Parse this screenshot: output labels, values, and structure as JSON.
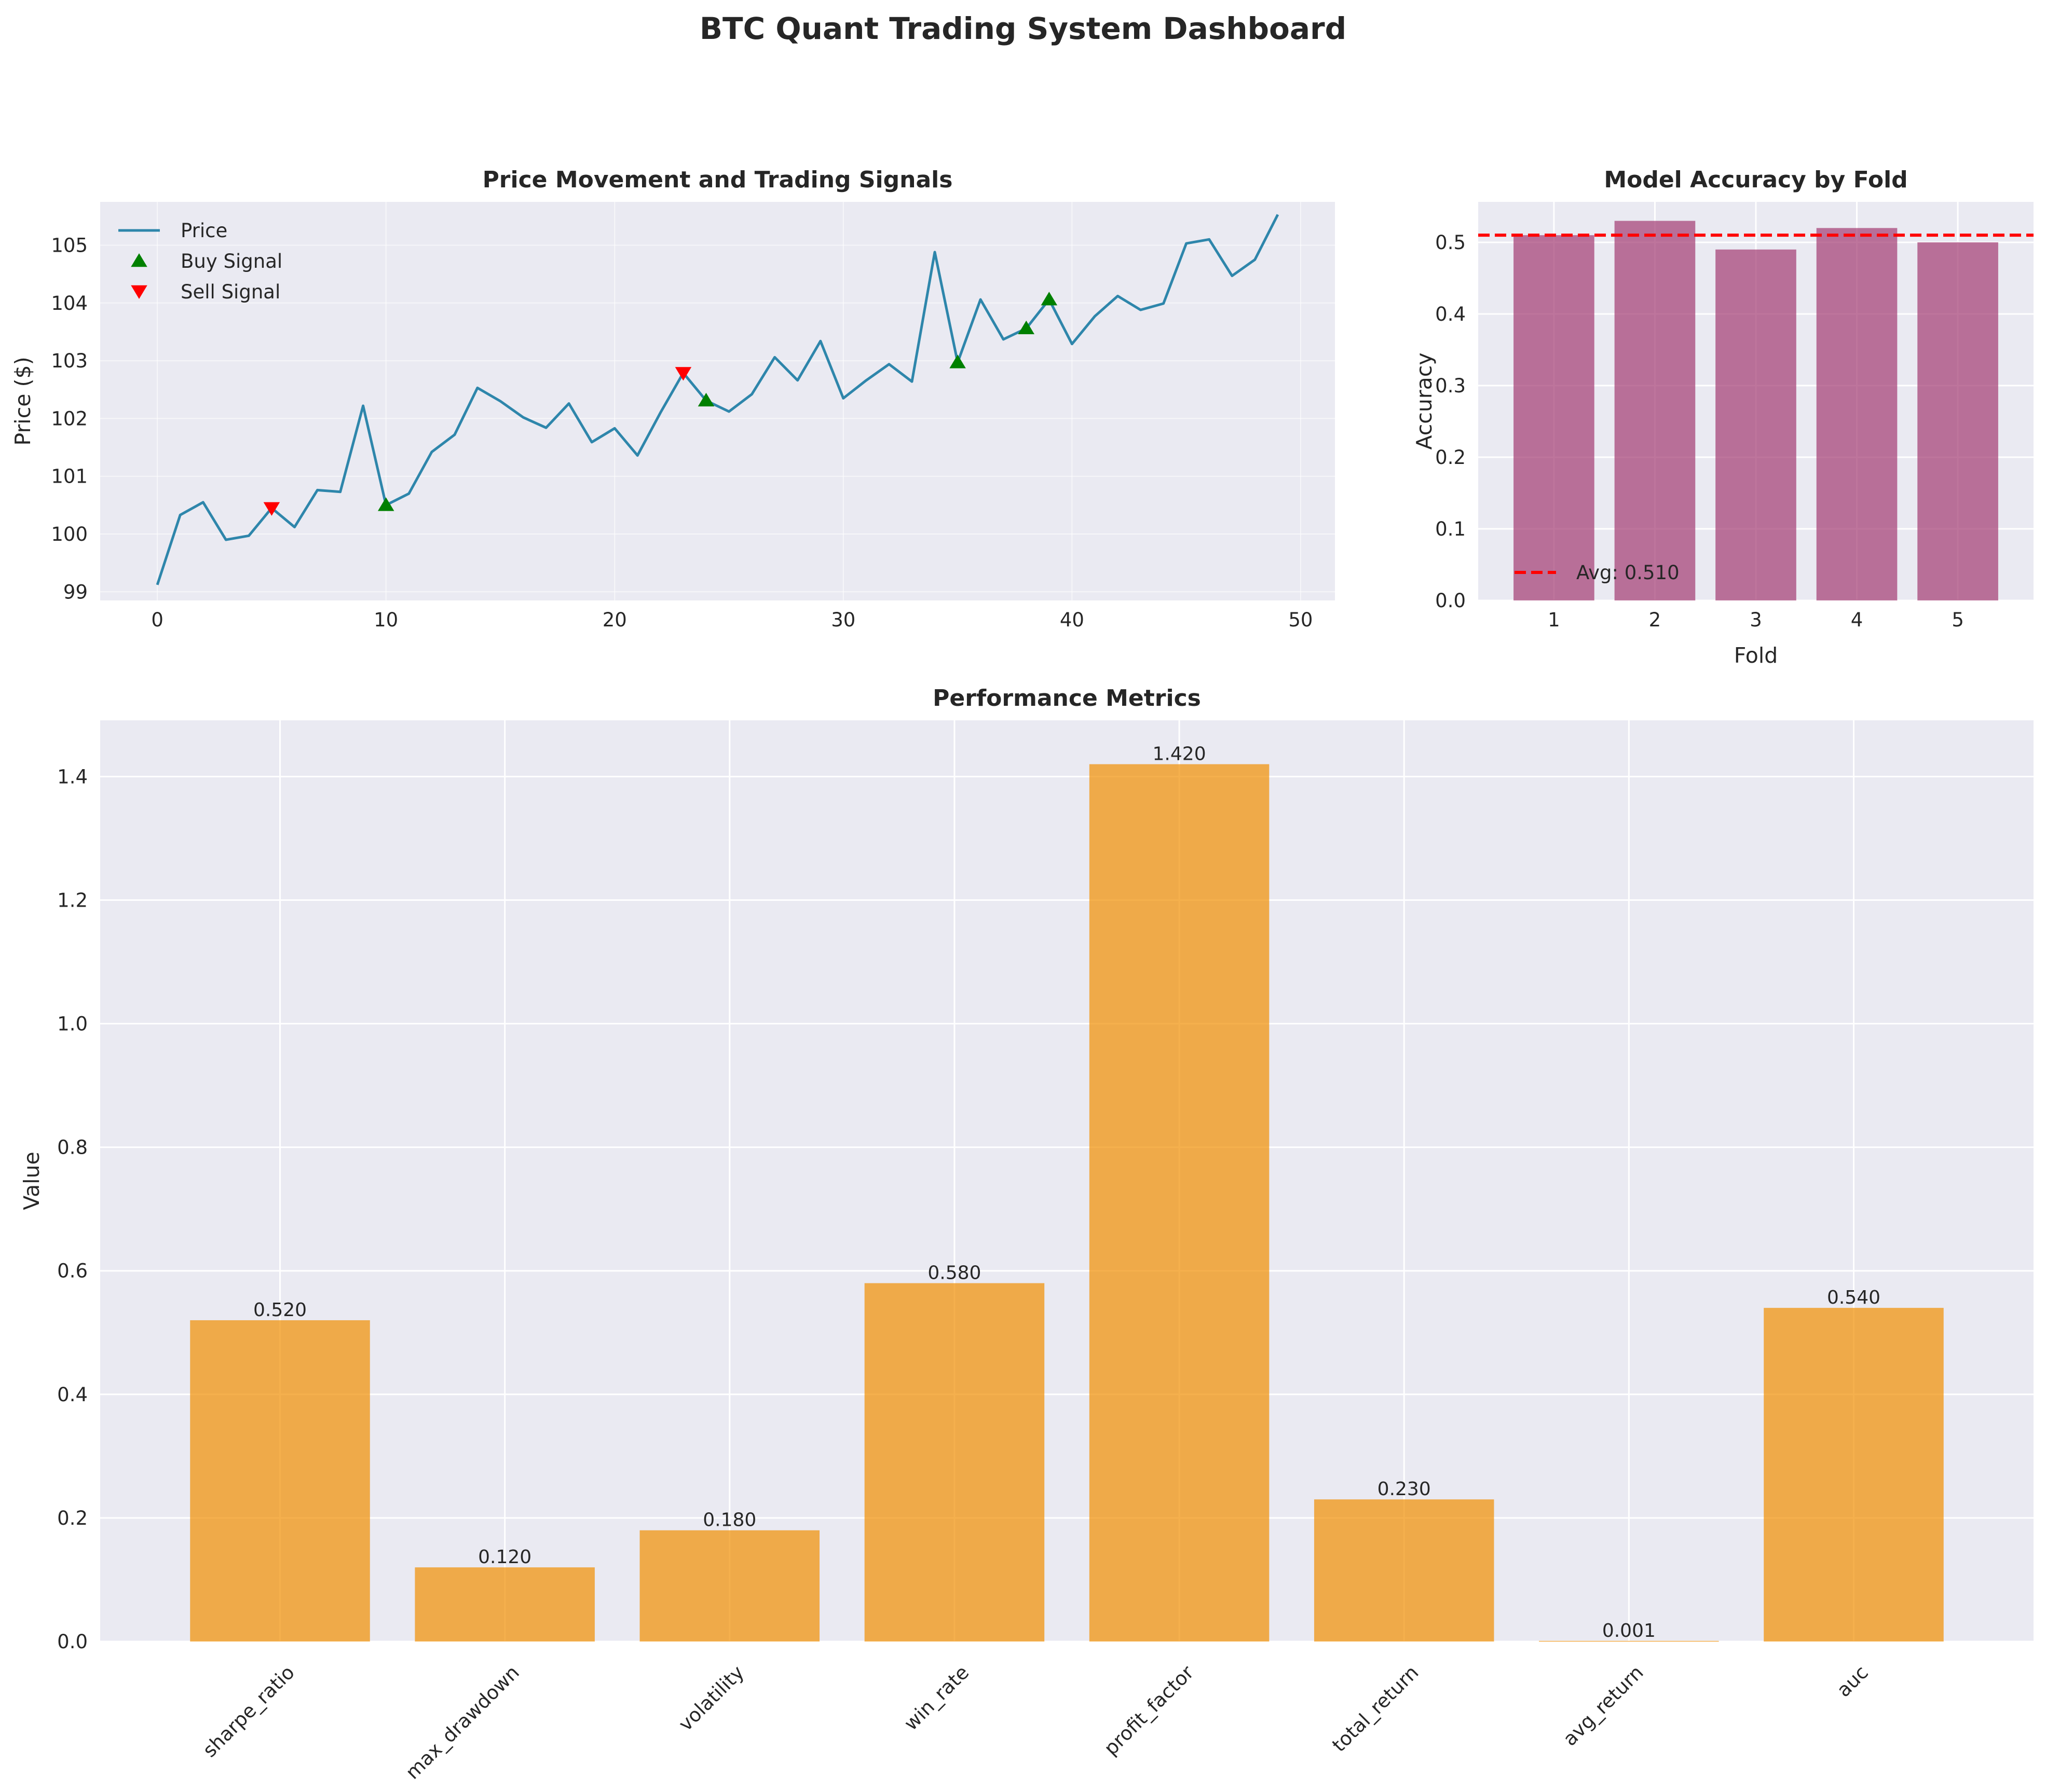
{
  "title": "BTC Quant Trading System Dashboard",
  "colors": {
    "price_line": "#2E86AB",
    "buy_marker": "#008000",
    "sell_marker": "#FF0000",
    "fold_bars": "#A23B72",
    "avg_line": "#FF0000",
    "metric_bars": "#F18F01",
    "panel_bg": "#EAEAF2",
    "grid": "#FFFFFF"
  },
  "chart_data": [
    {
      "type": "line",
      "title": "Price Movement and Trading Signals",
      "xlabel": "",
      "ylabel": "Price ($)",
      "xlim": [
        -2.5,
        51.5
      ],
      "ylim": [
        98.85,
        105.75
      ],
      "xticks": [
        0,
        10,
        20,
        30,
        40,
        50
      ],
      "yticks": [
        99,
        100,
        101,
        102,
        103,
        104,
        105
      ],
      "grid": true,
      "legend_position": "top-left",
      "series": [
        {
          "name": "Price",
          "x": [
            0,
            1,
            2,
            3,
            4,
            5,
            6,
            7,
            8,
            9,
            10,
            11,
            12,
            13,
            14,
            15,
            16,
            17,
            18,
            19,
            20,
            21,
            22,
            23,
            24,
            25,
            26,
            27,
            28,
            29,
            30,
            31,
            32,
            33,
            34,
            35,
            36,
            37,
            38,
            39,
            40,
            41,
            42,
            43,
            44,
            45,
            46,
            47,
            48,
            49
          ],
          "y": [
            99.12,
            100.33,
            100.55,
            99.9,
            99.97,
            100.45,
            100.12,
            100.76,
            100.73,
            102.22,
            100.5,
            100.7,
            101.42,
            101.72,
            102.53,
            102.3,
            102.02,
            101.84,
            102.26,
            101.59,
            101.83,
            101.36,
            102.1,
            102.79,
            102.31,
            102.12,
            102.42,
            103.06,
            102.66,
            103.34,
            102.35,
            102.66,
            102.94,
            102.64,
            104.88,
            102.97,
            104.06,
            103.37,
            103.56,
            104.06,
            103.29,
            103.77,
            104.12,
            103.88,
            103.99,
            105.03,
            105.1,
            104.47,
            104.75,
            105.53
          ]
        },
        {
          "name": "Buy Signal",
          "x": [
            10,
            24,
            35,
            38,
            39
          ],
          "y": [
            100.5,
            102.31,
            102.97,
            103.56,
            104.06
          ]
        },
        {
          "name": "Sell Signal",
          "x": [
            5,
            23
          ],
          "y": [
            100.45,
            102.79
          ]
        }
      ]
    },
    {
      "type": "bar",
      "title": "Model Accuracy by Fold",
      "xlabel": "Fold",
      "ylabel": "Accuracy",
      "categories": [
        "1",
        "2",
        "3",
        "4",
        "5"
      ],
      "values": [
        0.51,
        0.53,
        0.49,
        0.52,
        0.5
      ],
      "ylim": [
        0,
        0.5565
      ],
      "yticks": [
        0.0,
        0.1,
        0.2,
        0.3,
        0.4,
        0.5
      ],
      "ytick_labels": [
        "0.0",
        "0.1",
        "0.2",
        "0.3",
        "0.4",
        "0.5"
      ],
      "reference_line": {
        "label": "Avg: 0.510",
        "value": 0.51
      },
      "grid": true,
      "legend_position": "bottom-left"
    },
    {
      "type": "bar",
      "title": "Performance Metrics",
      "xlabel": "",
      "ylabel": "Value",
      "categories": [
        "sharpe_ratio",
        "max_drawdown",
        "volatility",
        "win_rate",
        "profit_factor",
        "total_return",
        "avg_return",
        "auc"
      ],
      "values": [
        0.52,
        0.12,
        0.18,
        0.58,
        1.42,
        0.23,
        0.001,
        0.54
      ],
      "value_labels": [
        "0.520",
        "0.120",
        "0.180",
        "0.580",
        "1.420",
        "0.230",
        "0.001",
        "0.540"
      ],
      "ylim": [
        0,
        1.491
      ],
      "yticks": [
        0.0,
        0.2,
        0.4,
        0.6,
        0.8,
        1.0,
        1.2,
        1.4
      ],
      "ytick_labels": [
        "0.0",
        "0.2",
        "0.4",
        "0.6",
        "0.8",
        "1.0",
        "1.2",
        "1.4"
      ],
      "grid": true
    }
  ]
}
